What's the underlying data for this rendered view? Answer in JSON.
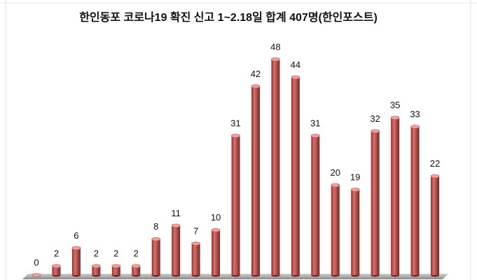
{
  "chart_data": {
    "type": "bar",
    "title": "한인동포 코로나19 확진 신고 1~2.18일 합계 407명(한인포스트)",
    "values": [
      0,
      2,
      6,
      2,
      2,
      2,
      8,
      11,
      7,
      10,
      31,
      42,
      48,
      44,
      31,
      20,
      19,
      32,
      35,
      33,
      22
    ],
    "color": "#c0504d"
  }
}
